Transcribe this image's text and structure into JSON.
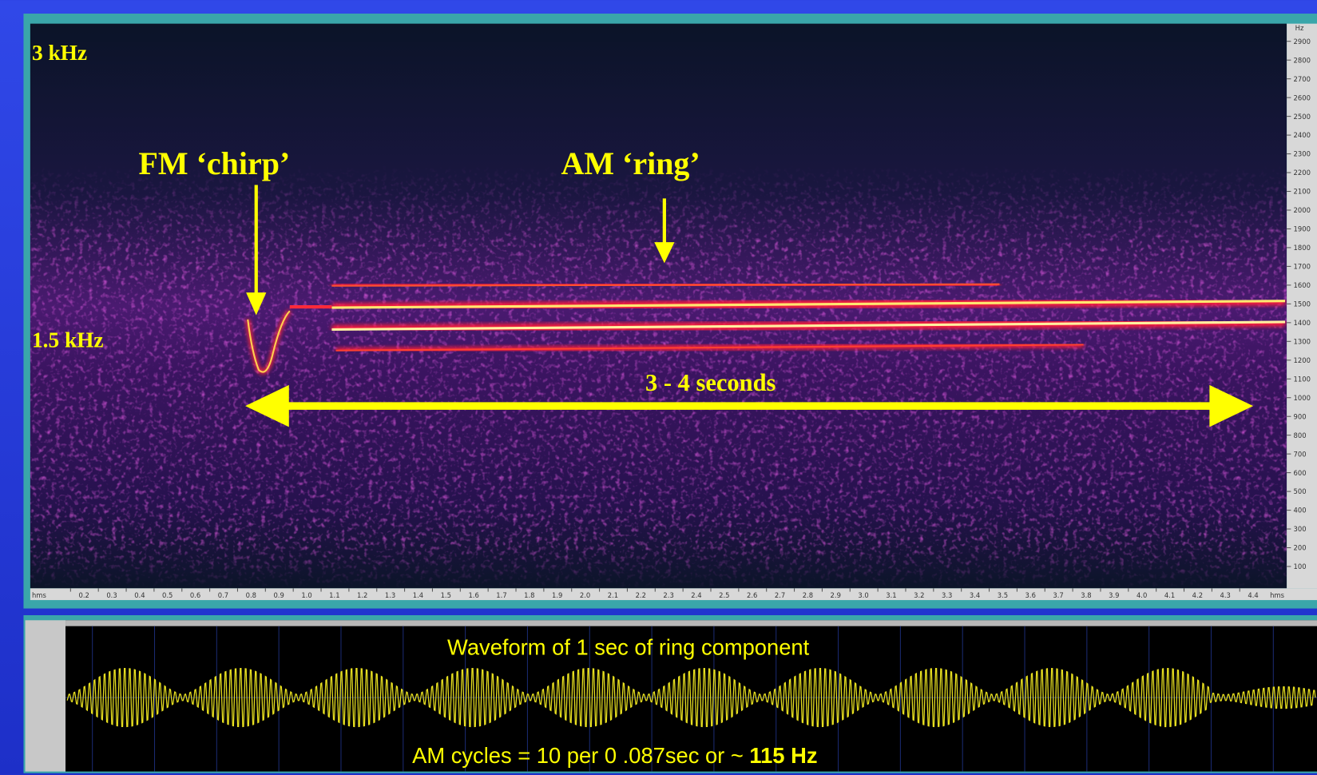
{
  "annotations": {
    "top_freq": "3 kHz",
    "mid_freq": "1.5 kHz",
    "chirp": "FM ‘chirp’",
    "ring": "AM ‘ring’",
    "duration": "3 - 4 seconds"
  },
  "frequency_axis": {
    "unit": "Hz",
    "ticks": [
      "2900",
      "2800",
      "2700",
      "2600",
      "2500",
      "2400",
      "2300",
      "2200",
      "2100",
      "2000",
      "1900",
      "1800",
      "1700",
      "1600",
      "1500",
      "1400",
      "1300",
      "1200",
      "1100",
      "1000",
      "900",
      "800",
      "700",
      "600",
      "500",
      "400",
      "300",
      "200",
      "100"
    ]
  },
  "time_axis": {
    "unit": "hms",
    "ticks": [
      "0.2",
      "0.3",
      "0.4",
      "0.5",
      "0.6",
      "0.7",
      "0.8",
      "0.9",
      "1.0",
      "1.1",
      "1.2",
      "1.3",
      "1.4",
      "1.5",
      "1.6",
      "1.7",
      "1.8",
      "1.9",
      "2.0",
      "2.1",
      "2.2",
      "2.3",
      "2.4",
      "2.5",
      "2.6",
      "2.7",
      "2.8",
      "2.9",
      "3.0",
      "3.1",
      "3.2",
      "3.3",
      "3.4",
      "3.5",
      "3.6",
      "3.7",
      "3.8",
      "3.9",
      "4.0",
      "4.1",
      "4.2",
      "4.3",
      "4.4"
    ]
  },
  "waveform": {
    "title": "Waveform of 1 sec of ring component",
    "caption": "AM cycles = 10 per 0 .087sec or ~ ",
    "caption_bold": "115 Hz"
  }
}
